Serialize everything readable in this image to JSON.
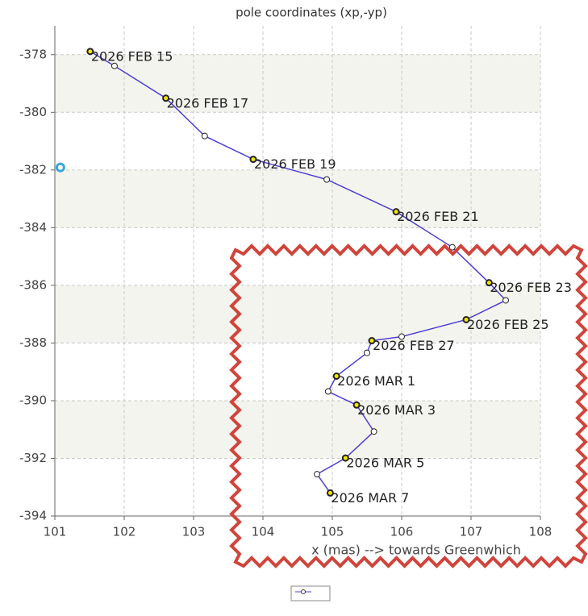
{
  "chart_data": {
    "type": "line",
    "title": "pole coordinates (xp,-yp)",
    "x_label": "x (mas) --> towards Greenwhich",
    "xlim": [
      101,
      108
    ],
    "xticks": [
      101,
      102,
      103,
      104,
      105,
      106,
      107,
      108
    ],
    "ylim": [
      -394,
      -377
    ],
    "yticks": [
      -394,
      -392,
      -390,
      -388,
      -386,
      -384,
      -382,
      -380,
      -378
    ],
    "grid": true,
    "series": [
      {
        "color": "#4a3fd6",
        "marker_color": "#f2e600",
        "x": [
          101.51,
          101.86,
          102.6,
          103.16,
          103.86,
          104.92,
          105.92,
          106.73,
          107.26,
          107.5,
          106.93,
          106.0,
          105.57,
          105.5,
          105.06,
          104.94,
          105.35,
          105.6,
          105.19,
          104.78,
          104.97
        ],
        "values": [
          -377.89,
          -378.39,
          -379.51,
          -380.82,
          -381.63,
          -382.33,
          -383.45,
          -384.68,
          -385.91,
          -386.52,
          -387.19,
          -387.78,
          -387.92,
          -388.34,
          -389.15,
          -389.68,
          -390.15,
          -391.07,
          -391.99,
          -392.55,
          -393.2
        ],
        "labels": [
          "2026 FEB 15",
          null,
          "2026 FEB 17",
          null,
          "2026 FEB 19",
          null,
          "2026 FEB 21",
          null,
          "2026 FEB 23",
          null,
          "2026 FEB 25",
          null,
          "2026 FEB 27",
          null,
          "2026 MAR 1",
          null,
          "2026 MAR 3",
          null,
          "2026 MAR 5",
          null,
          "2026 MAR 7"
        ]
      },
      {
        "color": "#3aa7dc",
        "x": [
          101.08
        ],
        "values": [
          -381.91
        ]
      }
    ]
  }
}
